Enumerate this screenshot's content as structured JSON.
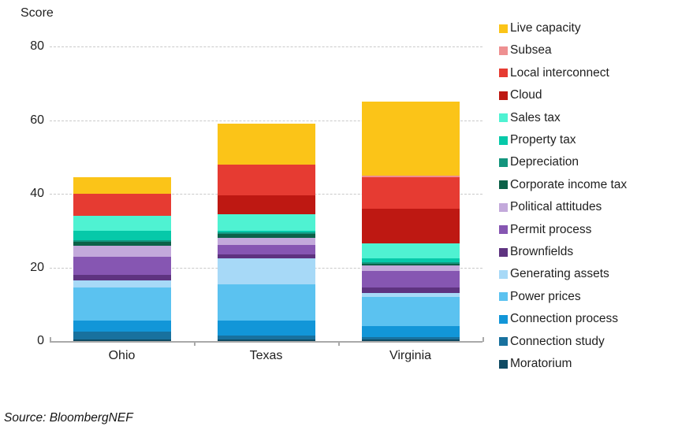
{
  "chart_data": {
    "type": "bar",
    "stacked": true,
    "title": "Score",
    "categories": [
      "Ohio",
      "Texas",
      "Virginia"
    ],
    "yticks": [
      80,
      60,
      40,
      20,
      0
    ],
    "ylim": [
      0,
      80
    ],
    "grid": "horizontal-dashed",
    "legend_position": "right",
    "series": [
      {
        "name": "Live capacity",
        "color": "#FBC418",
        "values": [
          4.5,
          11,
          20
        ]
      },
      {
        "name": "Subsea",
        "color": "#EE9091",
        "values": [
          0,
          0,
          0.5
        ]
      },
      {
        "name": "Local interconnect",
        "color": "#E63B32",
        "values": [
          6,
          8.5,
          8.5
        ]
      },
      {
        "name": "Cloud",
        "color": "#BE1812",
        "values": [
          0,
          5,
          9.5
        ]
      },
      {
        "name": "Sales tax",
        "color": "#4FF2D2",
        "values": [
          4,
          4.5,
          4
        ]
      },
      {
        "name": "Property tax",
        "color": "#06C9A9",
        "values": [
          2.5,
          0.5,
          1
        ]
      },
      {
        "name": "Depreciation",
        "color": "#13957D",
        "values": [
          0.5,
          0.5,
          0.5
        ]
      },
      {
        "name": "Corporate income tax",
        "color": "#0C6148",
        "values": [
          1,
          1,
          0.5
        ]
      },
      {
        "name": "Political attitudes",
        "color": "#C3A9DB",
        "values": [
          3,
          2,
          1.5
        ]
      },
      {
        "name": "Permit process",
        "color": "#8656B2",
        "values": [
          5,
          2.5,
          4.5
        ]
      },
      {
        "name": "Brownfields",
        "color": "#5E3380",
        "values": [
          1.5,
          1,
          1.5
        ]
      },
      {
        "name": "Generating assets",
        "color": "#A7D9F7",
        "values": [
          2,
          7,
          1
        ]
      },
      {
        "name": "Power prices",
        "color": "#5BC2F0",
        "values": [
          9,
          10,
          8
        ]
      },
      {
        "name": "Connection process",
        "color": "#1296D8",
        "values": [
          3,
          4,
          3
        ]
      },
      {
        "name": "Connection study",
        "color": "#18719E",
        "values": [
          2,
          1,
          0.5
        ]
      },
      {
        "name": "Moratorium",
        "color": "#0E4A63",
        "values": [
          0.5,
          0.5,
          0.5
        ]
      }
    ],
    "totals": [
      44.5,
      59,
      65
    ]
  },
  "source": {
    "label": "Source: BloombergNEF"
  }
}
